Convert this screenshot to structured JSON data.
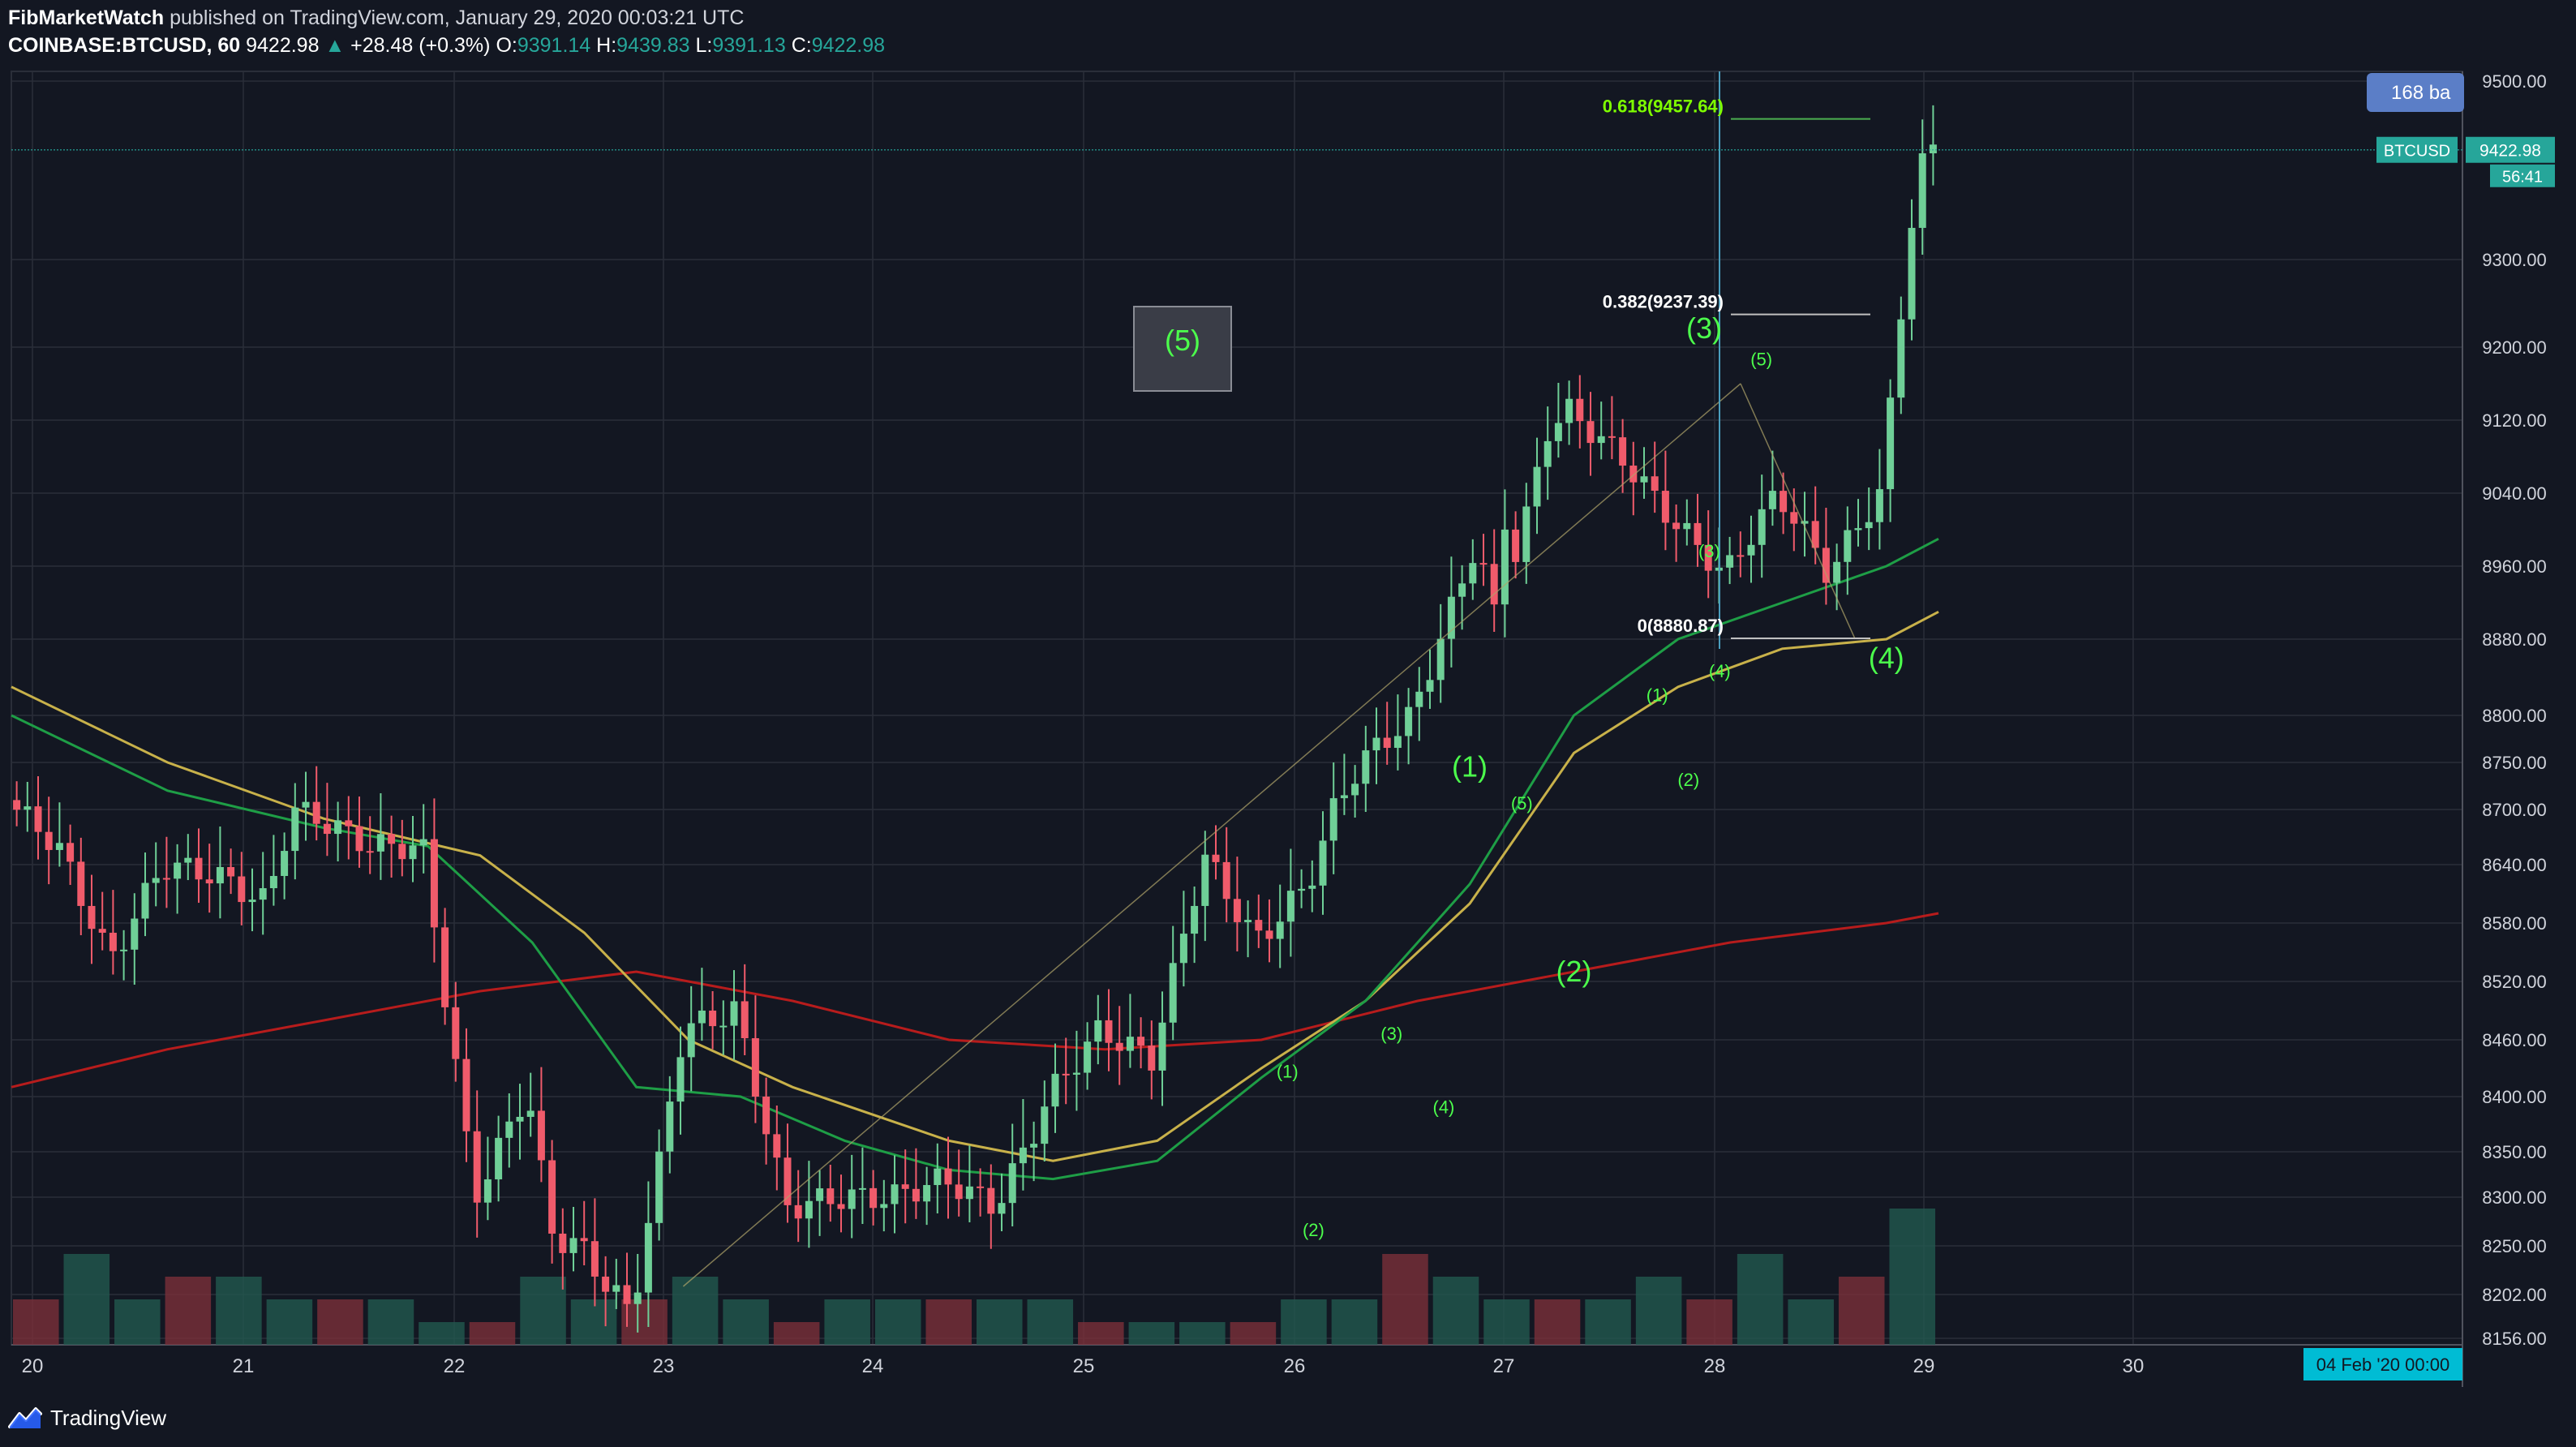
{
  "header": {
    "author": "FibMarketWatch",
    "published": "published on TradingView.com, January 29, 2020 00:03:21 UTC",
    "symbol": "COINBASE:BTCUSD, 60",
    "last": "9422.98",
    "up_arrow": "▲",
    "change": "+28.48 (+0.3%)",
    "o_label": "O:",
    "o": "9391.14",
    "h_label": "H:",
    "h": "9439.83",
    "l_label": "L:",
    "l": "9391.13",
    "c_label": "C:",
    "c": "9422.98"
  },
  "brand": {
    "name": "TradingView",
    "icon": "tradingview-logo-icon"
  },
  "colors": {
    "background": "#131722",
    "grid": "#2a2e39",
    "up": "#26a69a",
    "down": "#ef5350",
    "up_body": "#6fcf97",
    "down_body": "#f05b6b",
    "wave_label": "#4cff4c",
    "ma_green": "#1e9e46",
    "ma_yellow": "#c8b14a",
    "ma_red": "#b71c1c"
  },
  "chart_data": {
    "type": "candlestick",
    "symbol": "COINBASE:BTCUSD",
    "interval": "60",
    "y_ticks": [
      "9500.00",
      "9300.00",
      "9200.00",
      "9120.00",
      "9040.00",
      "8960.00",
      "8880.00",
      "8800.00",
      "8750.00",
      "8700.00",
      "8640.00",
      "8580.00",
      "8520.00",
      "8460.00",
      "8400.00",
      "8350.00",
      "8300.00",
      "8250.00",
      "8202.00",
      "8156.00"
    ],
    "x_ticks": [
      "20",
      "21",
      "22",
      "23",
      "24",
      "25",
      "26",
      "27",
      "28",
      "29",
      "30"
    ],
    "path_points": [
      [
        0,
        8710
      ],
      [
        1,
        8660
      ],
      [
        2,
        8540
      ],
      [
        3,
        8640
      ],
      [
        4,
        8630
      ],
      [
        5,
        8600
      ],
      [
        5.5,
        8700
      ],
      [
        6,
        8690
      ],
      [
        7,
        8660
      ],
      [
        8,
        8660
      ],
      [
        9,
        8300
      ],
      [
        10,
        8410
      ],
      [
        10.5,
        8260
      ],
      [
        11,
        8250
      ],
      [
        12,
        8180
      ],
      [
        13,
        8470
      ],
      [
        14,
        8490
      ],
      [
        15,
        8290
      ],
      [
        16,
        8300
      ],
      [
        17,
        8300
      ],
      [
        18,
        8320
      ],
      [
        19,
        8290
      ],
      [
        20,
        8400
      ],
      [
        21,
        8470
      ],
      [
        22,
        8440
      ],
      [
        23,
        8650
      ],
      [
        24,
        8560
      ],
      [
        25,
        8620
      ],
      [
        25.5,
        8700
      ],
      [
        26,
        8750
      ],
      [
        27,
        8800
      ],
      [
        28,
        8950
      ],
      [
        28.3,
        9000
      ],
      [
        28.5,
        8870
      ],
      [
        28.8,
        9020
      ],
      [
        29,
        8970
      ],
      [
        29.6,
        9110
      ],
      [
        30,
        9130
      ],
      [
        31,
        9080
      ],
      [
        32,
        9010
      ],
      [
        33,
        8950
      ],
      [
        34,
        9040
      ],
      [
        34.5,
        9000
      ],
      [
        35,
        8950
      ],
      [
        35.5,
        9000
      ],
      [
        36,
        9040
      ],
      [
        36.4,
        9250
      ],
      [
        36.7,
        9400
      ],
      [
        37,
        9423
      ]
    ],
    "ma_green": [
      [
        0,
        8800
      ],
      [
        3,
        8720
      ],
      [
        6,
        8680
      ],
      [
        8,
        8660
      ],
      [
        10,
        8560
      ],
      [
        12,
        8410
      ],
      [
        14,
        8400
      ],
      [
        16,
        8360
      ],
      [
        18,
        8330
      ],
      [
        20,
        8320
      ],
      [
        22,
        8340
      ],
      [
        24,
        8420
      ],
      [
        26,
        8500
      ],
      [
        28,
        8620
      ],
      [
        30,
        8800
      ],
      [
        32,
        8880
      ],
      [
        34,
        8920
      ],
      [
        36,
        8960
      ],
      [
        37,
        8990
      ]
    ],
    "ma_yellow": [
      [
        0,
        8830
      ],
      [
        3,
        8750
      ],
      [
        6,
        8690
      ],
      [
        9,
        8650
      ],
      [
        11,
        8570
      ],
      [
        13,
        8460
      ],
      [
        15,
        8410
      ],
      [
        18,
        8360
      ],
      [
        20,
        8340
      ],
      [
        22,
        8360
      ],
      [
        24,
        8430
      ],
      [
        26,
        8500
      ],
      [
        28,
        8600
      ],
      [
        30,
        8760
      ],
      [
        32,
        8830
      ],
      [
        34,
        8870
      ],
      [
        36,
        8880
      ],
      [
        37,
        8910
      ]
    ],
    "ma_red": [
      [
        0,
        8410
      ],
      [
        3,
        8450
      ],
      [
        6,
        8480
      ],
      [
        9,
        8510
      ],
      [
        12,
        8530
      ],
      [
        15,
        8500
      ],
      [
        18,
        8460
      ],
      [
        21,
        8450
      ],
      [
        24,
        8460
      ],
      [
        27,
        8500
      ],
      [
        30,
        8530
      ],
      [
        33,
        8560
      ],
      [
        36,
        8580
      ],
      [
        37,
        8590
      ]
    ],
    "last_price": 9422.98,
    "price_tag": "9422.98",
    "symbol_tag": "BTCUSD",
    "countdown": "56:41",
    "bars_badge": "168 ba",
    "date_badge": "04 Feb '20   00:00",
    "fib_levels": [
      {
        "label": "0.618(9457.64)",
        "price": 9457.64
      },
      {
        "label": "0.382(9237.39)",
        "price": 9237.39
      },
      {
        "label": "0(8880.87)",
        "price": 8880.87
      }
    ],
    "wave_labels_major": [
      {
        "text": "(1)",
        "x": 28,
        "price": 8735
      },
      {
        "text": "(2)",
        "x": 30,
        "price": 8520
      },
      {
        "text": "(3)",
        "x": 32.5,
        "price": 9210
      },
      {
        "text": "(4)",
        "x": 36,
        "price": 8850
      },
      {
        "text": "(5)",
        "x": 22.5,
        "price": 9200
      }
    ],
    "wave_labels_minor": [
      {
        "text": "(1)",
        "x": 24.5,
        "price": 8420
      },
      {
        "text": "(2)",
        "x": 25,
        "price": 8260
      },
      {
        "text": "(3)",
        "x": 26.5,
        "price": 8460
      },
      {
        "text": "(4)",
        "x": 27.5,
        "price": 8385
      },
      {
        "text": "(5)",
        "x": 29,
        "price": 8700
      },
      {
        "text": "(1)",
        "x": 31.6,
        "price": 8815
      },
      {
        "text": "(2)",
        "x": 32.2,
        "price": 8725
      },
      {
        "text": "(3)",
        "x": 32.6,
        "price": 8970
      },
      {
        "text": "(4)",
        "x": 32.8,
        "price": 8840
      },
      {
        "text": "(5)",
        "x": 33.6,
        "price": 9180
      }
    ],
    "volume": [
      2,
      4,
      2,
      3,
      3,
      2,
      2,
      2,
      1,
      1,
      3,
      2,
      2,
      3,
      2,
      1,
      2,
      2,
      2,
      2,
      2,
      1,
      1,
      1,
      1,
      2,
      2,
      4,
      3,
      2,
      2,
      2,
      3,
      2,
      4,
      2,
      3,
      6
    ]
  }
}
